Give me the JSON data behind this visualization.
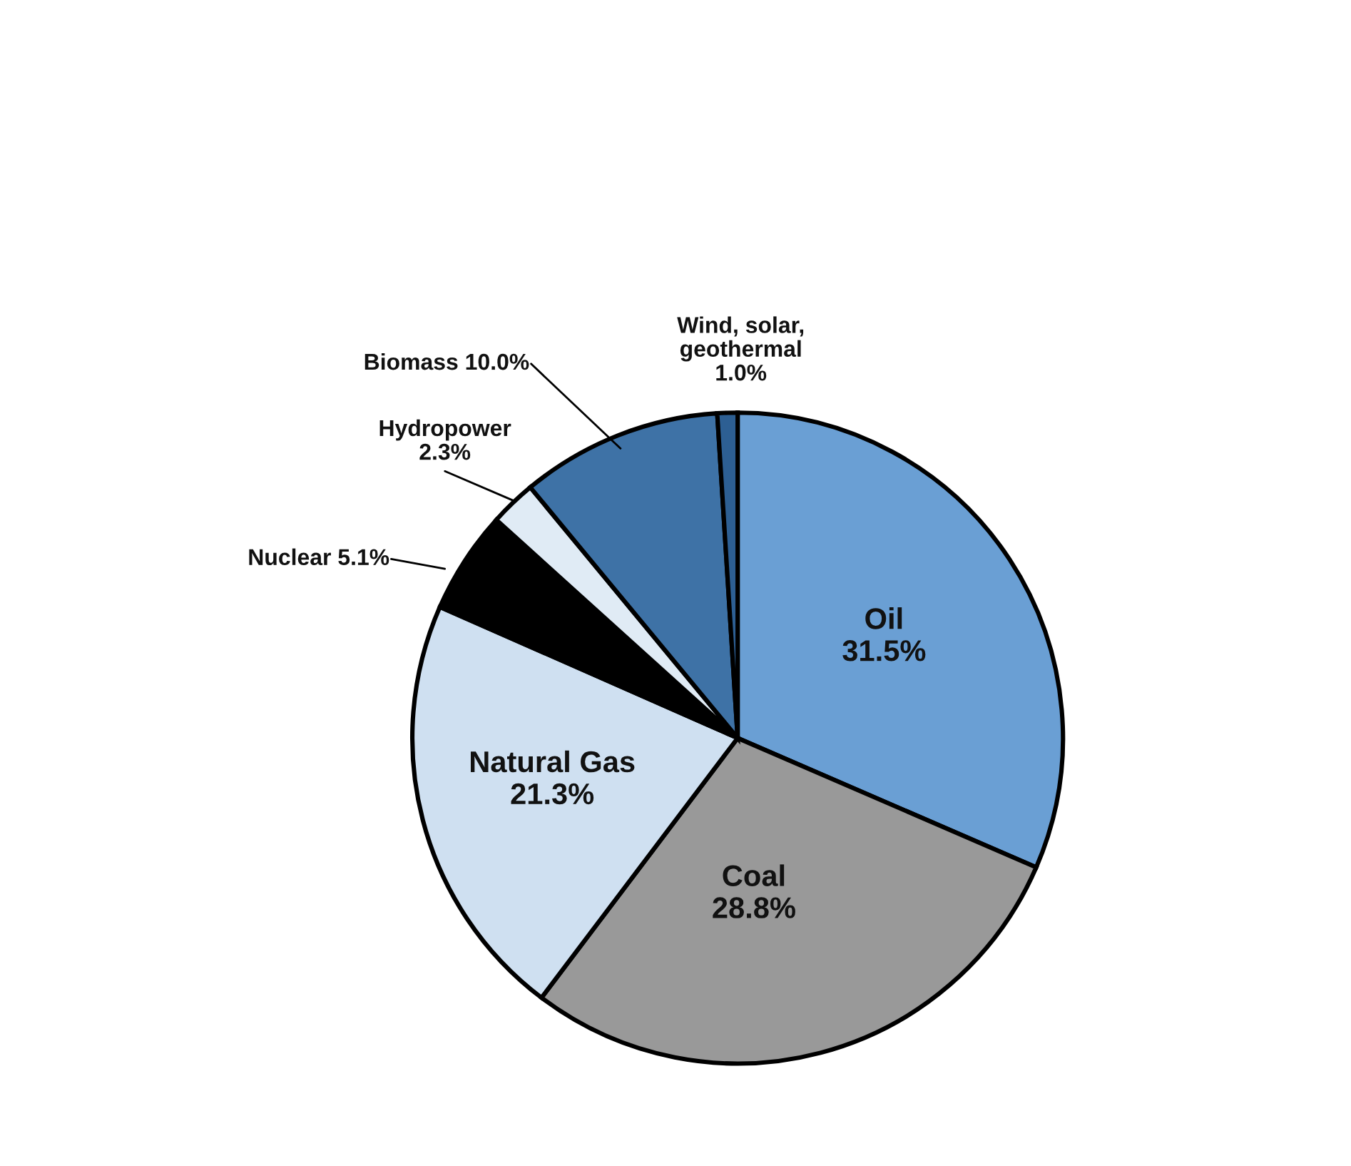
{
  "chart_data": {
    "type": "pie",
    "categories": [
      "Oil",
      "Coal",
      "Natural Gas",
      "Nuclear",
      "Hydropower",
      "Biomass",
      "Wind, solar, geothermal"
    ],
    "values": [
      31.5,
      28.8,
      21.3,
      5.1,
      2.3,
      10.0,
      1.0
    ],
    "value_labels": [
      "31.5%",
      "28.8%",
      "21.3%",
      "5.1%",
      "2.3%",
      "10.0%",
      "1.0%"
    ],
    "colors": [
      "#6a9fd4",
      "#999999",
      "#cfe0f1",
      "#000000",
      "#e0ebf5",
      "#3e72a6",
      "#2d5f93"
    ],
    "legend": false
  }
}
